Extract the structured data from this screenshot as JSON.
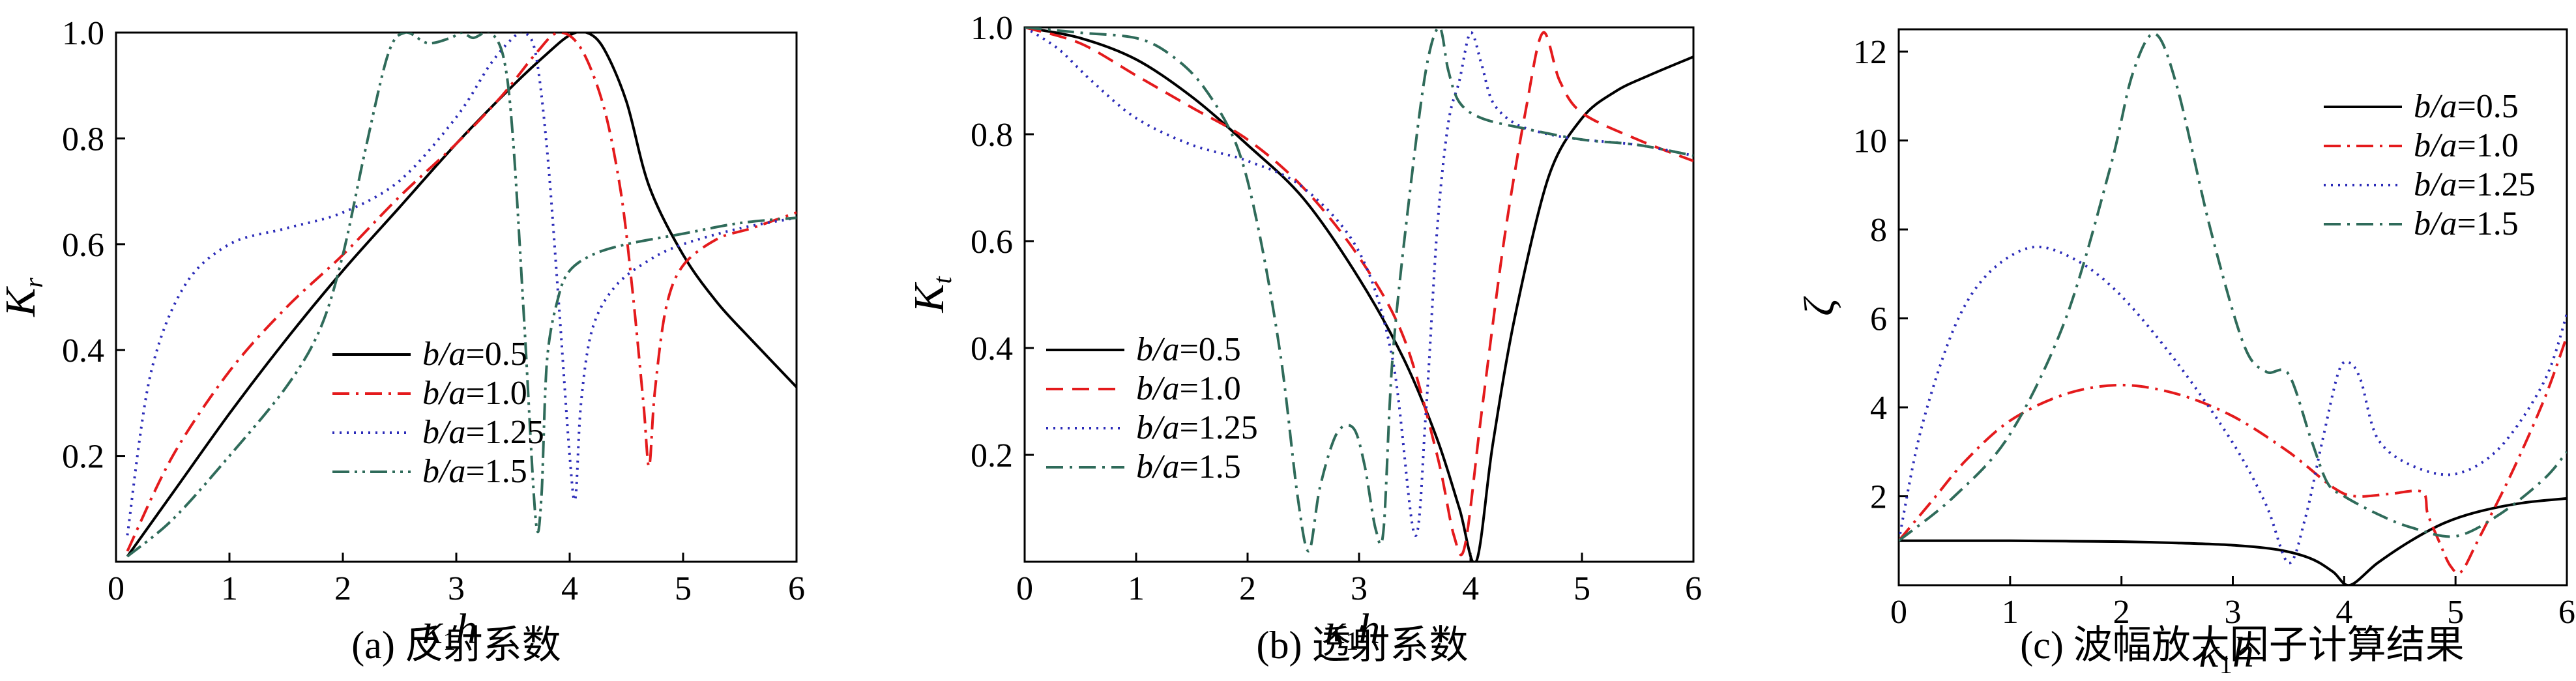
{
  "chart_data": [
    {
      "type": "line",
      "panel": "a",
      "caption": "(a) 反射系数",
      "xlabel": "κ",
      "xlabel_sub": "1",
      "xlabel_tail": "h",
      "ylabel": "K",
      "ylabel_sub": "r",
      "xlim": [
        0,
        6
      ],
      "ylim": [
        0,
        1.0
      ],
      "xticks": [
        "0",
        "1",
        "2",
        "3",
        "4",
        "5",
        "6"
      ],
      "yticks": [
        "0.2",
        "0.4",
        "0.6",
        "0.8",
        "1.0"
      ],
      "ytick_values": [
        0.2,
        0.4,
        0.6,
        0.8,
        1.0
      ],
      "legend_position": "lower-center",
      "series": [
        {
          "name": "b/a=0.5",
          "color": "#000000",
          "dash": "solid",
          "x": [
            0.1,
            0.5,
            1,
            1.5,
            2,
            2.5,
            3,
            3.5,
            3.8,
            4.0,
            4.15,
            4.3,
            4.5,
            4.7,
            5.0,
            5.3,
            5.6,
            6.0
          ],
          "y": [
            0.01,
            0.13,
            0.28,
            0.42,
            0.55,
            0.67,
            0.79,
            0.9,
            0.96,
            0.995,
            1.0,
            0.97,
            0.87,
            0.71,
            0.58,
            0.49,
            0.42,
            0.33
          ]
        },
        {
          "name": "b/a=1.0",
          "color": "#e41a1c",
          "dash": "dashdot",
          "x": [
            0.1,
            0.5,
            1,
            1.5,
            2,
            2.5,
            3,
            3.4,
            3.7,
            3.9,
            4.1,
            4.3,
            4.45,
            4.55,
            4.65,
            4.7,
            4.75,
            4.85,
            5.0,
            5.3,
            5.6,
            6.0
          ],
          "y": [
            0.02,
            0.2,
            0.36,
            0.48,
            0.58,
            0.69,
            0.79,
            0.88,
            0.96,
            1.0,
            0.97,
            0.86,
            0.7,
            0.52,
            0.3,
            0.18,
            0.32,
            0.48,
            0.56,
            0.61,
            0.63,
            0.66
          ]
        },
        {
          "name": "b/a=1.25",
          "color": "#2b2bb8",
          "dash": "dotted",
          "x": [
            0.1,
            0.3,
            0.6,
            1,
            1.5,
            2,
            2.5,
            3,
            3.3,
            3.5,
            3.6,
            3.7,
            3.8,
            3.9,
            4.0,
            4.05,
            4.1,
            4.2,
            4.4,
            4.7,
            5.0,
            5.5,
            6.0
          ],
          "y": [
            0.05,
            0.35,
            0.52,
            0.6,
            0.63,
            0.66,
            0.72,
            0.84,
            0.94,
            0.99,
            1.0,
            0.96,
            0.78,
            0.5,
            0.2,
            0.12,
            0.3,
            0.44,
            0.52,
            0.57,
            0.6,
            0.63,
            0.65
          ]
        },
        {
          "name": "b/a=1.5",
          "color": "#2f6b5a",
          "dash": "dashdotdot",
          "x": [
            0.1,
            0.5,
            1,
            1.5,
            1.8,
            2.0,
            2.2,
            2.4,
            2.55,
            2.75,
            2.95,
            3.05,
            3.15,
            3.3,
            3.42,
            3.5,
            3.6,
            3.7,
            3.75,
            3.8,
            3.9,
            4.0,
            4.2,
            4.5,
            5.0,
            5.5,
            6.0
          ],
          "y": [
            0.01,
            0.08,
            0.2,
            0.33,
            0.44,
            0.58,
            0.78,
            0.96,
            1.0,
            0.98,
            0.99,
            1.0,
            0.99,
            1.0,
            0.95,
            0.8,
            0.45,
            0.08,
            0.12,
            0.38,
            0.5,
            0.55,
            0.58,
            0.6,
            0.62,
            0.64,
            0.65
          ]
        }
      ]
    },
    {
      "type": "line",
      "panel": "b",
      "caption": "(b)  透射系数",
      "xlabel": "κ",
      "xlabel_sub": "1",
      "xlabel_tail": "h",
      "ylabel": "K",
      "ylabel_sub": "t",
      "xlim": [
        0,
        6
      ],
      "ylim": [
        0,
        1.0
      ],
      "xticks": [
        "0",
        "1",
        "2",
        "3",
        "4",
        "5",
        "6"
      ],
      "yticks": [
        "0.2",
        "0.4",
        "0.6",
        "0.8",
        "1.0"
      ],
      "ytick_values": [
        0.2,
        0.4,
        0.6,
        0.8,
        1.0
      ],
      "legend_position": "lower-left",
      "series": [
        {
          "name": "b/a=0.5",
          "color": "#000000",
          "dash": "solid",
          "x": [
            0,
            0.5,
            1,
            1.5,
            2,
            2.5,
            3,
            3.4,
            3.7,
            3.9,
            4.05,
            4.2,
            4.4,
            4.7,
            5.0,
            5.3,
            5.6,
            6.0
          ],
          "y": [
            1.0,
            0.98,
            0.94,
            0.87,
            0.78,
            0.68,
            0.53,
            0.38,
            0.23,
            0.1,
            0.0,
            0.22,
            0.46,
            0.72,
            0.83,
            0.88,
            0.91,
            0.945
          ]
        },
        {
          "name": "b/a=1.0",
          "color": "#e41a1c",
          "dash": "dashed",
          "x": [
            0,
            0.5,
            1,
            1.5,
            2,
            2.5,
            3,
            3.4,
            3.7,
            3.85,
            3.95,
            4.1,
            4.3,
            4.5,
            4.65,
            4.8,
            5.0,
            5.5,
            6.0
          ],
          "y": [
            1.0,
            0.97,
            0.91,
            0.85,
            0.79,
            0.7,
            0.57,
            0.42,
            0.2,
            0.05,
            0.03,
            0.28,
            0.6,
            0.85,
            0.99,
            0.9,
            0.84,
            0.79,
            0.75
          ]
        },
        {
          "name": "b/a=1.25",
          "color": "#2b2bb8",
          "dash": "dotted",
          "x": [
            0,
            0.3,
            0.6,
            1,
            1.5,
            2,
            2.5,
            3,
            3.3,
            3.5,
            3.6,
            3.7,
            3.8,
            3.9,
            4.0,
            4.1,
            4.2,
            4.4,
            4.7,
            5.0,
            5.5,
            6.0
          ],
          "y": [
            1.0,
            0.96,
            0.9,
            0.83,
            0.78,
            0.75,
            0.7,
            0.58,
            0.38,
            0.05,
            0.28,
            0.62,
            0.82,
            0.9,
            0.99,
            0.93,
            0.86,
            0.82,
            0.8,
            0.79,
            0.78,
            0.76
          ]
        },
        {
          "name": "b/a=1.5",
          "color": "#2f6b5a",
          "dash": "dashdot",
          "x": [
            0,
            0.5,
            1,
            1.3,
            1.6,
            1.9,
            2.1,
            2.3,
            2.45,
            2.55,
            2.65,
            2.8,
            2.95,
            3.05,
            3.15,
            3.22,
            3.3,
            3.45,
            3.6,
            3.72,
            3.8,
            3.9,
            4.1,
            4.5,
            5.0,
            5.5,
            6.0
          ],
          "y": [
            1.0,
            0.99,
            0.98,
            0.95,
            0.89,
            0.78,
            0.62,
            0.38,
            0.12,
            0.02,
            0.14,
            0.24,
            0.25,
            0.18,
            0.06,
            0.06,
            0.38,
            0.68,
            0.92,
            1.0,
            0.92,
            0.86,
            0.83,
            0.81,
            0.79,
            0.78,
            0.76
          ]
        }
      ]
    },
    {
      "type": "line",
      "panel": "c",
      "caption": "(c) 波幅放大因子计算结果",
      "xlabel": "κ",
      "xlabel_sub": "1",
      "xlabel_tail": "h",
      "ylabel": "ζ",
      "ylabel_sub": "",
      "xlim": [
        0,
        6
      ],
      "ylim": [
        0,
        12.5
      ],
      "xticks": [
        "0",
        "1",
        "2",
        "3",
        "4",
        "5",
        "6"
      ],
      "yticks": [
        "2",
        "4",
        "6",
        "8",
        "10",
        "12"
      ],
      "ytick_values": [
        2,
        4,
        6,
        8,
        10,
        12
      ],
      "legend_position": "upper-right",
      "series": [
        {
          "name": "b/a=0.5",
          "color": "#000000",
          "dash": "solid",
          "x": [
            0,
            0.5,
            1,
            1.5,
            2,
            2.5,
            3,
            3.4,
            3.7,
            3.9,
            4.05,
            4.3,
            4.6,
            4.9,
            5.2,
            5.6,
            6.0
          ],
          "y": [
            1.0,
            1.0,
            1.0,
            0.99,
            0.98,
            0.95,
            0.9,
            0.8,
            0.6,
            0.3,
            0.0,
            0.5,
            1.0,
            1.4,
            1.65,
            1.85,
            1.95
          ]
        },
        {
          "name": "b/a=1.0",
          "color": "#e41a1c",
          "dash": "dashdot",
          "x": [
            0,
            0.3,
            0.6,
            1,
            1.5,
            2,
            2.5,
            3,
            3.5,
            3.9,
            4.1,
            4.4,
            4.7,
            4.75,
            4.85,
            4.95,
            5.05,
            5.2,
            5.5,
            5.8,
            6.0
          ],
          "y": [
            1.0,
            1.9,
            2.8,
            3.7,
            4.3,
            4.5,
            4.3,
            3.8,
            3.0,
            2.2,
            2.0,
            2.05,
            2.1,
            1.6,
            1.0,
            0.45,
            0.3,
            1.0,
            2.5,
            4.2,
            5.6
          ]
        },
        {
          "name": "b/a=1.25",
          "color": "#2b2bb8",
          "dash": "dotted",
          "x": [
            0,
            0.2,
            0.5,
            0.8,
            1.2,
            1.6,
            2,
            2.5,
            3,
            3.3,
            3.5,
            3.65,
            3.8,
            3.95,
            4.05,
            4.15,
            4.3,
            4.6,
            5.0,
            5.4,
            5.8,
            6.0
          ],
          "y": [
            1.0,
            3.5,
            5.8,
            7.0,
            7.6,
            7.3,
            6.5,
            5.0,
            3.2,
            1.8,
            0.5,
            1.5,
            3.2,
            4.8,
            5.0,
            4.6,
            3.3,
            2.7,
            2.5,
            3.1,
            4.6,
            6.1
          ]
        },
        {
          "name": "b/a=1.5",
          "color": "#2f6b5a",
          "dash": "dashdot",
          "x": [
            0,
            0.5,
            1,
            1.5,
            1.9,
            2.1,
            2.3,
            2.5,
            2.8,
            3.1,
            3.3,
            3.5,
            3.7,
            3.85,
            4.0,
            4.3,
            4.6,
            5.0,
            5.4,
            5.8,
            6.0
          ],
          "y": [
            1.0,
            2.0,
            3.4,
            6.0,
            9.4,
            11.5,
            12.4,
            11.2,
            8.0,
            5.4,
            4.8,
            4.75,
            3.3,
            2.3,
            2.0,
            1.6,
            1.3,
            1.1,
            1.6,
            2.4,
            3.0
          ]
        }
      ]
    }
  ]
}
